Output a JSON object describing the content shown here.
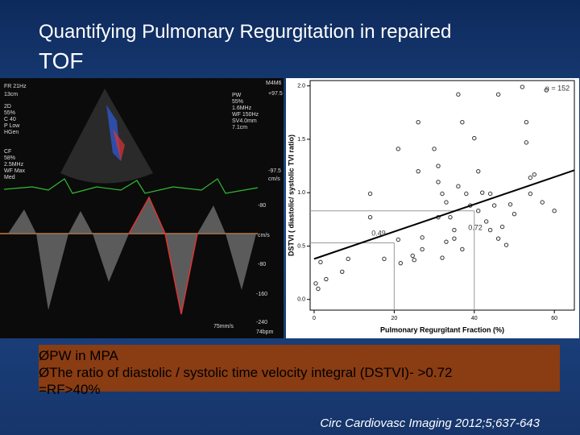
{
  "header": {
    "title_line1": "Quantifying Pulmonary Regurgitation in repaired",
    "title_line2": "TOF"
  },
  "echo_image": {
    "labels": [
      "FR 21Hz",
      "13cm",
      "2D",
      "55%",
      "C 40",
      "P Low",
      "HGen",
      "CF",
      "58%",
      "2.5MHz",
      "WF Max",
      "Med",
      "PW",
      "55%",
      "1.6MHz",
      "WF 150Hz",
      "SV4.0mm",
      "7.1cm",
      "M4M6",
      "+97.5",
      "-97.5",
      "cm/s",
      "-80",
      "cm/s",
      "-80",
      "-160",
      "-240",
      "75mm/s",
      "74bpm"
    ]
  },
  "chart_data": {
    "type": "scatter",
    "x_label": "Pulmonary Regurgitant Fraction (%)",
    "y_label": "DSTVI ( diastolic/ systolic TVI ratio)",
    "annotations": [
      "n = 152",
      "0.49",
      "0.72"
    ],
    "x": [
      1.6,
      0.4,
      1,
      3,
      8.5,
      7,
      14,
      14,
      17.5,
      21,
      21,
      21.6,
      24.6,
      25,
      26,
      26,
      27,
      27,
      30,
      31,
      31,
      31,
      32,
      32,
      33,
      33,
      34,
      35,
      35,
      36,
      36,
      37,
      37,
      38,
      39,
      40,
      41,
      41,
      42,
      43,
      44,
      44,
      45,
      46,
      46,
      47,
      48,
      49,
      50,
      52,
      53,
      53,
      54,
      54,
      55,
      57,
      58,
      60
    ],
    "values": [
      0.35,
      0.15,
      0.1,
      0.19,
      0.38,
      0.26,
      0.99,
      0.77,
      0.38,
      1.41,
      0.56,
      0.34,
      0.41,
      0.37,
      1.2,
      1.66,
      0.58,
      0.47,
      1.41,
      1.25,
      1.1,
      0.77,
      0.99,
      0.39,
      0.54,
      0.91,
      0.77,
      0.65,
      0.57,
      1.06,
      1.92,
      1.66,
      0.47,
      0.99,
      0.88,
      1.51,
      1.2,
      0.83,
      1.0,
      0.73,
      0.65,
      0.99,
      0.88,
      0.57,
      1.92,
      0.68,
      0.51,
      0.89,
      0.8,
      1.99,
      1.66,
      1.47,
      0.99,
      1.14,
      1.17,
      0.91,
      1.96,
      0.83
    ],
    "color": "#333333",
    "fit_line": {
      "x": [
        0,
        65
      ],
      "y": [
        0.38,
        1.21
      ]
    },
    "reference_lines": {
      "x": [
        20,
        40
      ],
      "y": [
        0.53,
        0.83
      ]
    },
    "xlim": [
      -1,
      65
    ],
    "ylim": [
      -0.1,
      2.05
    ],
    "xticks": [
      0,
      20,
      40,
      60
    ],
    "yticks": [
      {
        "value": 0,
        "label": "0.0"
      },
      0.5,
      {
        "value": 1,
        "label": "1.0"
      },
      1.5,
      {
        "value": 2,
        "label": "2.0"
      }
    ]
  },
  "bullets": [
    "ØPW in MPA",
    "ØThe ratio of diastolic / systolic time velocity integral (DSTVI)- >0.72",
    "=RF>40%"
  ],
  "citation": "Circ Cardiovasc Imaging 2012;5;637-643"
}
